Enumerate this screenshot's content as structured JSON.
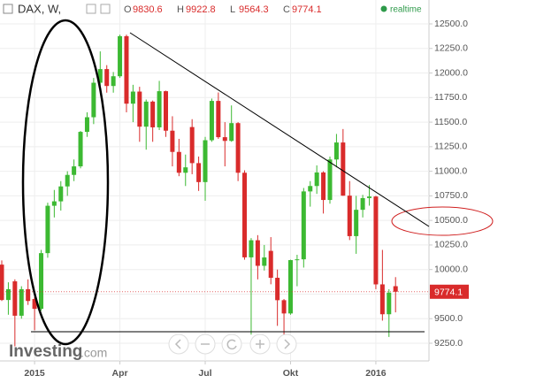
{
  "chart_data": {
    "type": "candlestick",
    "title": "DAX, W,",
    "ohlc_labels": [
      "O",
      "H",
      "L",
      "C"
    ],
    "status": "realtime",
    "watermark": "Investing",
    "watermark_suffix": ".com",
    "up_color": "#3cb932",
    "down_color": "#d92b2b",
    "categories": [
      null,
      null,
      null,
      null,
      null,
      null,
      null,
      null,
      null,
      null,
      null,
      null,
      null,
      null,
      null,
      null,
      null,
      null,
      null,
      null,
      null,
      null,
      null,
      null,
      null,
      null,
      null,
      null,
      null,
      null,
      null,
      null,
      null,
      null,
      null,
      null,
      null,
      null,
      null,
      null,
      null,
      null,
      null,
      null,
      null,
      null,
      null,
      null,
      null,
      null,
      null,
      null,
      null,
      null,
      null,
      null,
      null,
      null,
      null,
      null,
      null
    ],
    "open": [
      10050,
      9690,
      9880,
      9530,
      9800,
      9700,
      9600,
      10167,
      10649,
      10694,
      10846,
      10963,
      11050,
      11401,
      11550,
      11901,
      12040,
      11868,
      11967,
      12375,
      11688,
      11811,
      11454,
      11709,
      11447,
      11815,
      11413,
      11197,
      10985,
      11450,
      11083,
      10890,
      11316,
      11716,
      11347,
      11309,
      11490,
      10985,
      10124,
      10298,
      10038,
      10190,
      9916,
      9688,
      9553,
      10096,
      10104,
      10795,
      10850,
      10988,
      10708,
      11120,
      11293,
      10752,
      10340,
      10608,
      10727,
      10743,
      9849,
      9545,
      9830.6
    ],
    "high": [
      10093,
      9870,
      9900,
      9830,
      9900,
      9720,
      10200,
      10680,
      10810,
      10900,
      11000,
      11120,
      11410,
      11600,
      11950,
      12220,
      12080,
      12010,
      12390,
      12390,
      11880,
      11860,
      11730,
      11720,
      11920,
      11820,
      11560,
      11330,
      11170,
      11530,
      11150,
      11350,
      11740,
      11802,
      11500,
      11670,
      11500,
      11010,
      10320,
      10350,
      10250,
      10330,
      10000,
      9700,
      10100,
      10150,
      10830,
      10900,
      11060,
      11000,
      11150,
      11380,
      11430,
      10900,
      10750,
      10760,
      10860,
      10750,
      10200,
      9800,
      9922.8
    ],
    "low": [
      9680,
      9540,
      9218,
      9500,
      9640,
      9382,
      9580,
      10120,
      10530,
      10600,
      10750,
      10900,
      11030,
      11350,
      11480,
      11870,
      11800,
      11800,
      11950,
      11600,
      11500,
      11300,
      11220,
      11300,
      11420,
      11350,
      11050,
      10950,
      10850,
      10970,
      10800,
      10700,
      11300,
      11330,
      11050,
      11300,
      10900,
      10100,
      9338,
      9900,
      9990,
      9850,
      9427,
      9325,
      9540,
      9830,
      10020,
      10640,
      10770,
      10570,
      10670,
      11040,
      10750,
      10300,
      10160,
      10530,
      10650,
      9800,
      9480,
      9314,
      9564.3
    ],
    "close": [
      9690,
      9800,
      9530,
      9800,
      9680,
      9600,
      10167,
      10649,
      10694,
      10846,
      10963,
      11050,
      11401,
      11550,
      11901,
      12040,
      11868,
      11967,
      12375,
      11688,
      11811,
      11454,
      11709,
      11447,
      11815,
      11413,
      11197,
      10985,
      11040,
      11083,
      10890,
      11316,
      11716,
      11347,
      11309,
      11490,
      10985,
      10124,
      10298,
      10038,
      10123,
      9916,
      9688,
      9553,
      10096,
      10104,
      10795,
      10850,
      10988,
      10708,
      11120,
      11293,
      10752,
      10340,
      10608,
      10727,
      10743,
      9849,
      9545,
      9765,
      9774.1
    ],
    "ylim": [
      9070,
      12743
    ],
    "yticks": [
      {
        "value": 9250,
        "label": "9250.0"
      },
      {
        "value": 9500,
        "label": "9500.0"
      },
      {
        "value": 9750,
        "label": "9750.0"
      },
      {
        "value": 10000,
        "label": "10000.0"
      },
      {
        "value": 10250,
        "label": "10250.0"
      },
      {
        "value": 10500,
        "label": "10500.0"
      },
      {
        "value": 10750,
        "label": "10750.0"
      },
      {
        "value": 11000,
        "label": "11000.0"
      },
      {
        "value": 11250,
        "label": "11250.0"
      },
      {
        "value": 11500,
        "label": "11500.0"
      },
      {
        "value": 11750,
        "label": "11750.0"
      },
      {
        "value": 12000,
        "label": "12000.0"
      },
      {
        "value": 12250,
        "label": "12250.0"
      },
      {
        "value": 12500,
        "label": "12500.0"
      }
    ],
    "xticks": [
      {
        "value": 5,
        "label": "2015"
      },
      {
        "value": 18,
        "label": "Apr"
      },
      {
        "value": 31,
        "label": "Jul"
      },
      {
        "value": 44,
        "label": "Okt"
      },
      {
        "value": 57,
        "label": "2016"
      }
    ],
    "grid": true
  }
}
